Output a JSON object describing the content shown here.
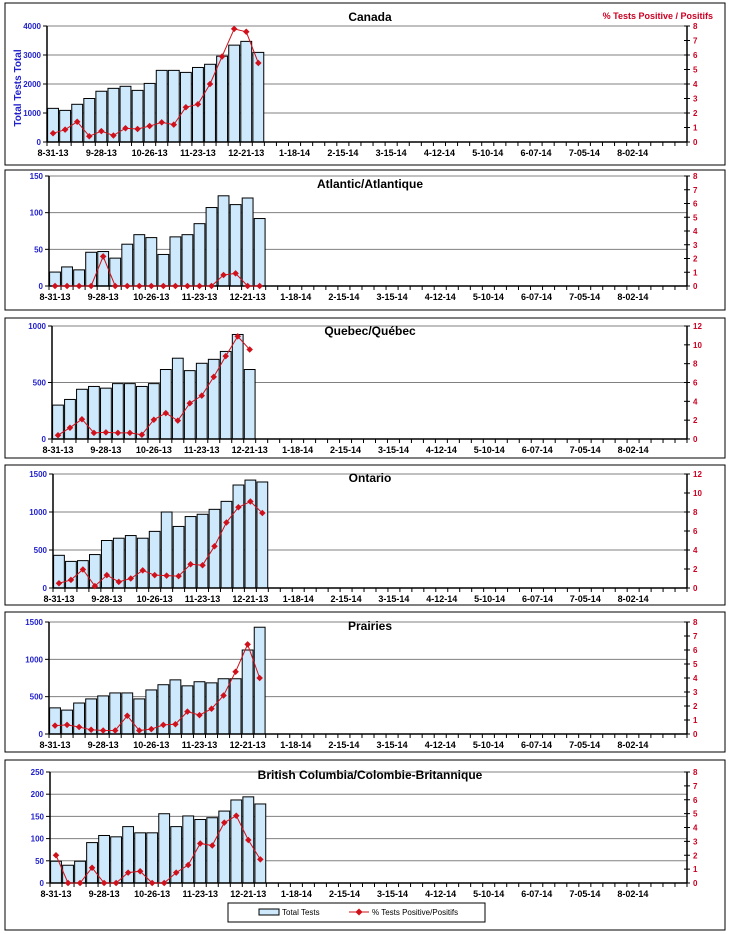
{
  "chart_data": [
    {
      "type": "bar+line",
      "title": "Canada",
      "ylabel": "Total Tests Total",
      "y2label": "% Tests Positive / Positifs",
      "x_tick_labels": [
        "8-31-13",
        "9-28-13",
        "10-26-13",
        "11-23-13",
        "12-21-13",
        "1-18-14",
        "2-15-14",
        "3-15-14",
        "4-12-14",
        "5-10-14",
        "6-07-14",
        "7-05-14",
        "8-02-14"
      ],
      "ylim": [
        0,
        4000
      ],
      "ystep": 1000,
      "y2lim": [
        0,
        8
      ],
      "y2step": 1,
      "series": [
        {
          "name": "Total Tests",
          "kind": "bar",
          "values": [
            1160,
            1090,
            1300,
            1500,
            1750,
            1850,
            1920,
            1780,
            2020,
            2470,
            2470,
            2400,
            2570,
            2680,
            2960,
            3340,
            3470,
            3090
          ]
        },
        {
          "name": "% Tests Positive/Positifs",
          "kind": "line",
          "axis": "right",
          "values": [
            0.6,
            0.85,
            1.4,
            0.4,
            0.75,
            0.45,
            0.95,
            0.9,
            1.1,
            1.35,
            1.2,
            2.4,
            2.6,
            4.0,
            5.9,
            7.8,
            7.6,
            5.45
          ]
        }
      ]
    },
    {
      "type": "bar+line",
      "title": "Atlantic/Atlantique",
      "ylim": [
        0,
        150
      ],
      "ystep": 50,
      "y2lim": [
        0,
        8
      ],
      "y2step": 1,
      "series": [
        {
          "name": "Total Tests",
          "kind": "bar",
          "values": [
            19,
            26,
            22,
            46,
            47,
            38,
            57,
            70,
            66,
            43,
            67,
            70,
            85,
            107,
            123,
            111,
            120,
            92
          ]
        },
        {
          "name": "% Tests Positive/Positifs",
          "kind": "line",
          "axis": "right",
          "values": [
            0,
            0,
            0,
            0,
            2.15,
            0,
            0,
            0,
            0,
            0,
            0,
            0,
            0,
            0,
            0.8,
            0.92,
            0,
            0
          ]
        }
      ]
    },
    {
      "type": "bar+line",
      "title": "Quebec/Québec",
      "ylim": [
        0,
        1000
      ],
      "ystep": 500,
      "y2lim": [
        0,
        12
      ],
      "y2step": 2,
      "series": [
        {
          "name": "Total Tests",
          "kind": "bar",
          "values": [
            300,
            350,
            440,
            465,
            450,
            490,
            490,
            465,
            490,
            615,
            715,
            605,
            670,
            705,
            775,
            925,
            615
          ]
        },
        {
          "name": "% Tests Positive/Positifs",
          "kind": "line",
          "axis": "right",
          "values": [
            0.4,
            1.2,
            2.1,
            0.65,
            0.7,
            0.65,
            0.65,
            0.45,
            2.05,
            2.75,
            1.95,
            3.8,
            4.6,
            6.6,
            8.8,
            10.9,
            9.5
          ]
        }
      ]
    },
    {
      "type": "bar+line",
      "title": "Ontario",
      "ylim": [
        0,
        1500
      ],
      "ystep": 500,
      "y2lim": [
        0,
        12
      ],
      "y2step": 2,
      "series": [
        {
          "name": "Total Tests",
          "kind": "bar",
          "values": [
            430,
            350,
            360,
            440,
            625,
            655,
            690,
            655,
            745,
            1000,
            810,
            940,
            970,
            1035,
            1140,
            1355,
            1420,
            1395
          ]
        },
        {
          "name": "% Tests Positive/Positifs",
          "kind": "line",
          "axis": "right",
          "values": [
            0.5,
            0.85,
            1.95,
            0.2,
            1.35,
            0.65,
            1.0,
            1.85,
            1.35,
            1.3,
            1.25,
            2.5,
            2.4,
            4.4,
            6.9,
            8.5,
            9.1,
            7.9
          ]
        }
      ]
    },
    {
      "type": "bar+line",
      "title": "Prairies",
      "ylim": [
        0,
        1500
      ],
      "ystep": 500,
      "y2lim": [
        0,
        8
      ],
      "y2step": 1,
      "series": [
        {
          "name": "Total Tests",
          "kind": "bar",
          "values": [
            350,
            320,
            415,
            470,
            510,
            550,
            550,
            470,
            590,
            660,
            725,
            645,
            700,
            685,
            740,
            740,
            1125,
            1430
          ]
        },
        {
          "name": "% Tests Positive/Positifs",
          "kind": "line",
          "axis": "right",
          "values": [
            0.6,
            0.65,
            0.5,
            0.3,
            0.25,
            0.25,
            1.3,
            0.25,
            0.35,
            0.65,
            0.7,
            1.6,
            1.35,
            1.8,
            2.75,
            4.45,
            6.4,
            4.0
          ]
        }
      ]
    },
    {
      "type": "bar+line",
      "title": "British Columbia/Colombie-Britannique",
      "ylim": [
        0,
        250
      ],
      "ystep": 50,
      "y2lim": [
        0,
        8
      ],
      "y2step": 1,
      "series": [
        {
          "name": "Total Tests",
          "kind": "bar",
          "values": [
            49,
            40,
            49,
            91,
            107,
            104,
            127,
            113,
            113,
            156,
            127,
            151,
            143,
            147,
            162,
            187,
            194,
            178
          ]
        },
        {
          "name": "% Tests Positive/Positifs",
          "kind": "line",
          "axis": "right",
          "values": [
            2.0,
            0,
            0,
            1.1,
            0,
            0,
            0.75,
            0.85,
            0,
            0,
            0.75,
            1.3,
            2.85,
            2.7,
            4.35,
            4.85,
            3.1,
            1.7
          ]
        }
      ]
    }
  ],
  "legend": {
    "placement": "bottom-center",
    "bar_label": "Total Tests",
    "line_label": "% Tests Positive/Positifs"
  },
  "colors": {
    "bar_fill": "#cde9fb",
    "bar_stroke": "#000000",
    "line": "#d0101a",
    "left_axis_text": "#2222cc",
    "right_axis_text": "#cc0022",
    "grid": "#808080"
  }
}
